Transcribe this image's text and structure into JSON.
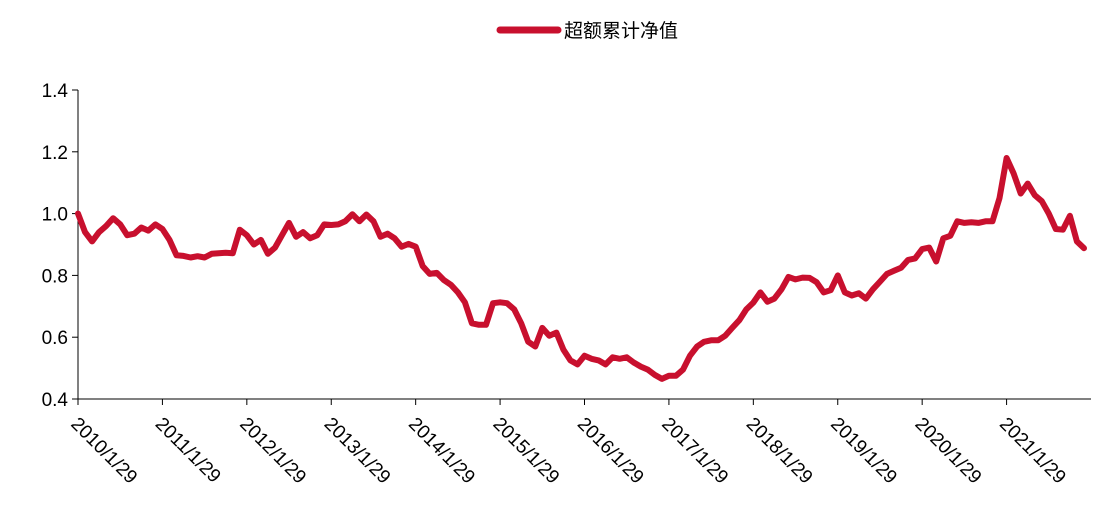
{
  "chart_data": {
    "type": "line",
    "title": "",
    "xlabel": "",
    "ylabel": "",
    "ylim": [
      0.4,
      1.4
    ],
    "yticks": [
      "0.4",
      "0.6",
      "0.8",
      "1.0",
      "1.2",
      "1.4"
    ],
    "xticks": [
      "2010/1/29",
      "2011/1/29",
      "2012/1/29",
      "2013/1/29",
      "2014/1/29",
      "2015/1/29",
      "2016/1/29",
      "2017/1/29",
      "2018/1/29",
      "2019/1/29",
      "2020/1/29",
      "2021/1/29"
    ],
    "x_start": "2010/1/29",
    "grid": false,
    "legend_position": "top-center",
    "colors": {
      "series": "#C8102E",
      "axis": "#000000"
    },
    "series": [
      {
        "name": "超额累计净值",
        "x": [
          "2010/01",
          "2010/02",
          "2010/03",
          "2010/04",
          "2010/05",
          "2010/06",
          "2010/07",
          "2010/08",
          "2010/09",
          "2010/10",
          "2010/11",
          "2010/12",
          "2011/01",
          "2011/02",
          "2011/03",
          "2011/04",
          "2011/05",
          "2011/06",
          "2011/07",
          "2011/08",
          "2011/09",
          "2011/10",
          "2011/11",
          "2011/12",
          "2012/01",
          "2012/02",
          "2012/03",
          "2012/04",
          "2012/05",
          "2012/06",
          "2012/07",
          "2012/08",
          "2012/09",
          "2012/10",
          "2012/11",
          "2012/12",
          "2013/01",
          "2013/02",
          "2013/03",
          "2013/04",
          "2013/05",
          "2013/06",
          "2013/07",
          "2013/08",
          "2013/09",
          "2013/10",
          "2013/11",
          "2013/12",
          "2014/01",
          "2014/02",
          "2014/03",
          "2014/04",
          "2014/05",
          "2014/06",
          "2014/07",
          "2014/08",
          "2014/09",
          "2014/10",
          "2014/11",
          "2014/12",
          "2015/01",
          "2015/02",
          "2015/03",
          "2015/04",
          "2015/05",
          "2015/06",
          "2015/07",
          "2015/08",
          "2015/09",
          "2015/10",
          "2015/11",
          "2015/12",
          "2016/01",
          "2016/02",
          "2016/03",
          "2016/04",
          "2016/05",
          "2016/06",
          "2016/07",
          "2016/08",
          "2016/09",
          "2016/10",
          "2016/11",
          "2016/12",
          "2017/01",
          "2017/02",
          "2017/03",
          "2017/04",
          "2017/05",
          "2017/06",
          "2017/07",
          "2017/08",
          "2017/09",
          "2017/10",
          "2017/11",
          "2017/12",
          "2018/01",
          "2018/02",
          "2018/03",
          "2018/04",
          "2018/05",
          "2018/06",
          "2018/07",
          "2018/08",
          "2018/09",
          "2018/10",
          "2018/11",
          "2018/12",
          "2019/01",
          "2019/02",
          "2019/03",
          "2019/04",
          "2019/05",
          "2019/06",
          "2019/07",
          "2019/08",
          "2019/09",
          "2019/10",
          "2019/11",
          "2019/12",
          "2020/01",
          "2020/02",
          "2020/03",
          "2020/04",
          "2020/05",
          "2020/06",
          "2020/07",
          "2020/08",
          "2020/09",
          "2020/10",
          "2020/11",
          "2020/12",
          "2021/01",
          "2021/02",
          "2021/03",
          "2021/04",
          "2021/05",
          "2021/06",
          "2021/07",
          "2021/08",
          "2021/09",
          "2021/10",
          "2021/11",
          "2021/12"
        ],
        "values": [
          1.0,
          0.94,
          0.91,
          0.94,
          0.96,
          0.985,
          0.965,
          0.93,
          0.935,
          0.955,
          0.945,
          0.965,
          0.95,
          0.915,
          0.865,
          0.863,
          0.858,
          0.862,
          0.858,
          0.87,
          0.872,
          0.873,
          0.872,
          0.948,
          0.93,
          0.9,
          0.915,
          0.87,
          0.89,
          0.93,
          0.97,
          0.925,
          0.94,
          0.92,
          0.93,
          0.965,
          0.963,
          0.965,
          0.975,
          0.998,
          0.975,
          0.997,
          0.975,
          0.925,
          0.935,
          0.92,
          0.893,
          0.902,
          0.893,
          0.83,
          0.805,
          0.808,
          0.785,
          0.77,
          0.745,
          0.713,
          0.645,
          0.64,
          0.64,
          0.71,
          0.713,
          0.71,
          0.69,
          0.645,
          0.585,
          0.57,
          0.63,
          0.605,
          0.615,
          0.56,
          0.525,
          0.512,
          0.54,
          0.53,
          0.525,
          0.512,
          0.535,
          0.53,
          0.535,
          0.518,
          0.505,
          0.495,
          0.478,
          0.465,
          0.475,
          0.475,
          0.495,
          0.54,
          0.57,
          0.585,
          0.59,
          0.59,
          0.605,
          0.63,
          0.655,
          0.69,
          0.712,
          0.745,
          0.715,
          0.725,
          0.755,
          0.795,
          0.787,
          0.793,
          0.792,
          0.778,
          0.745,
          0.752,
          0.8,
          0.745,
          0.735,
          0.742,
          0.725,
          0.755,
          0.78,
          0.805,
          0.815,
          0.825,
          0.85,
          0.855,
          0.885,
          0.89,
          0.845,
          0.92,
          0.928,
          0.975,
          0.97,
          0.972,
          0.97,
          0.975,
          0.975,
          1.05,
          1.18,
          1.13,
          1.065,
          1.097,
          1.06,
          1.04,
          1.0,
          0.95,
          0.948,
          0.993,
          0.91,
          0.888
        ]
      }
    ]
  }
}
